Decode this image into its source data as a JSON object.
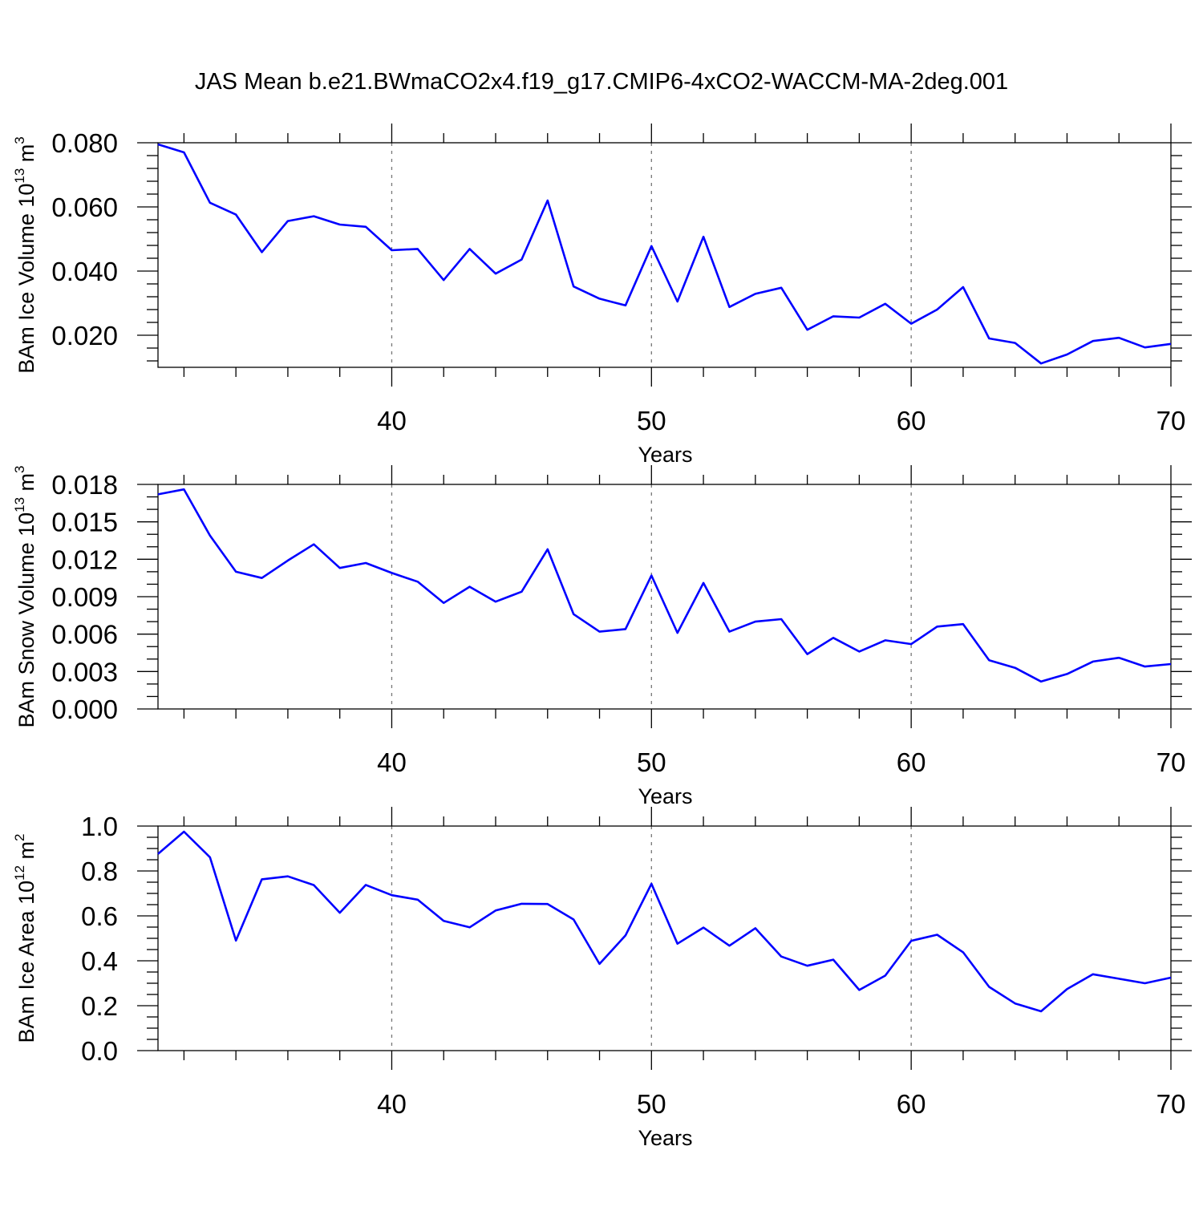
{
  "title": "JAS Mean b.e21.BWmaCO2x4.f19_g17.CMIP6-4xCO2-WACCM-MA-2deg.001",
  "series_color": "#0000ff",
  "chart_data": [
    {
      "type": "line",
      "id": "ice-volume",
      "xlabel": "Years",
      "ylabel_base": "BAm Ice Volume 10",
      "ylabel_exp": "13",
      "ylabel_unit": " m",
      "ylabel_unit_exp": "3",
      "xlim": [
        31,
        70
      ],
      "ylim": [
        0.01,
        0.08
      ],
      "x_ticks": [
        40,
        50,
        60,
        70
      ],
      "x_minor_step": 2,
      "x_grid": [
        40,
        50,
        60
      ],
      "y_ticks": [
        0.02,
        0.04,
        0.06,
        0.08
      ],
      "y_tick_labels": [
        "0.020",
        "0.040",
        "0.060",
        "0.080"
      ],
      "y_minor_step": 0.004,
      "x": [
        31,
        32,
        33,
        34,
        35,
        36,
        37,
        38,
        39,
        40,
        41,
        42,
        43,
        44,
        45,
        46,
        47,
        48,
        49,
        50,
        51,
        52,
        53,
        54,
        55,
        56,
        57,
        58,
        59,
        60,
        61,
        62,
        63,
        64,
        65,
        66,
        67,
        68,
        69,
        70
      ],
      "values": [
        0.0795,
        0.077,
        0.0613,
        0.0576,
        0.0459,
        0.0556,
        0.0571,
        0.0545,
        0.0538,
        0.0465,
        0.0469,
        0.0372,
        0.0469,
        0.0392,
        0.0436,
        0.062,
        0.0352,
        0.0314,
        0.0293,
        0.0478,
        0.0305,
        0.0507,
        0.0288,
        0.0329,
        0.0348,
        0.0217,
        0.0259,
        0.0255,
        0.0298,
        0.0236,
        0.028,
        0.035,
        0.019,
        0.0176,
        0.0112,
        0.014,
        0.0182,
        0.0192,
        0.0162,
        0.0173
      ]
    },
    {
      "type": "line",
      "id": "snow-volume",
      "xlabel": "Years",
      "ylabel_base": "BAm Snow Volume 10",
      "ylabel_exp": "13",
      "ylabel_unit": " m",
      "ylabel_unit_exp": "3",
      "xlim": [
        31,
        70
      ],
      "ylim": [
        0.0,
        0.018
      ],
      "x_ticks": [
        40,
        50,
        60,
        70
      ],
      "x_minor_step": 2,
      "x_grid": [
        40,
        50,
        60
      ],
      "y_ticks": [
        0.0,
        0.003,
        0.006,
        0.009,
        0.012,
        0.015,
        0.018
      ],
      "y_tick_labels": [
        "0.000",
        "0.003",
        "0.006",
        "0.009",
        "0.012",
        "0.015",
        "0.018"
      ],
      "y_minor_step": 0.001,
      "x": [
        31,
        32,
        33,
        34,
        35,
        36,
        37,
        38,
        39,
        40,
        41,
        42,
        43,
        44,
        45,
        46,
        47,
        48,
        49,
        50,
        51,
        52,
        53,
        54,
        55,
        56,
        57,
        58,
        59,
        60,
        61,
        62,
        63,
        64,
        65,
        66,
        67,
        68,
        69,
        70
      ],
      "values": [
        0.0172,
        0.0176,
        0.0139,
        0.011,
        0.0105,
        0.0119,
        0.0132,
        0.0113,
        0.0117,
        0.0109,
        0.0102,
        0.0085,
        0.0098,
        0.0086,
        0.0094,
        0.0128,
        0.0076,
        0.0062,
        0.0064,
        0.0107,
        0.0061,
        0.0101,
        0.0062,
        0.007,
        0.0072,
        0.0044,
        0.0057,
        0.0046,
        0.0055,
        0.0052,
        0.0066,
        0.0068,
        0.0039,
        0.0033,
        0.0022,
        0.0028,
        0.0038,
        0.0041,
        0.0034,
        0.0036
      ]
    },
    {
      "type": "line",
      "id": "ice-area",
      "xlabel": "Years",
      "ylabel_base": "BAm Ice Area 10",
      "ylabel_exp": "12",
      "ylabel_unit": " m",
      "ylabel_unit_exp": "2",
      "xlim": [
        31,
        70
      ],
      "ylim": [
        0.0,
        1.0
      ],
      "x_ticks": [
        40,
        50,
        60,
        70
      ],
      "x_minor_step": 2,
      "x_grid": [
        40,
        50,
        60
      ],
      "y_ticks": [
        0.0,
        0.2,
        0.4,
        0.6,
        0.8,
        1.0
      ],
      "y_tick_labels": [
        "0.0",
        "0.2",
        "0.4",
        "0.6",
        "0.8",
        "1.0"
      ],
      "y_minor_step": 0.05,
      "x": [
        31,
        32,
        33,
        34,
        35,
        36,
        37,
        38,
        39,
        40,
        41,
        42,
        43,
        44,
        45,
        46,
        47,
        48,
        49,
        50,
        51,
        52,
        53,
        54,
        55,
        56,
        57,
        58,
        59,
        60,
        61,
        62,
        63,
        64,
        65,
        66,
        67,
        68,
        69,
        70
      ],
      "values": [
        0.876,
        0.975,
        0.861,
        0.49,
        0.763,
        0.776,
        0.737,
        0.614,
        0.738,
        0.692,
        0.672,
        0.578,
        0.549,
        0.624,
        0.654,
        0.653,
        0.584,
        0.386,
        0.513,
        0.743,
        0.476,
        0.548,
        0.467,
        0.545,
        0.419,
        0.378,
        0.405,
        0.27,
        0.334,
        0.489,
        0.516,
        0.438,
        0.284,
        0.21,
        0.175,
        0.274,
        0.34,
        0.32,
        0.3,
        0.325
      ]
    }
  ]
}
